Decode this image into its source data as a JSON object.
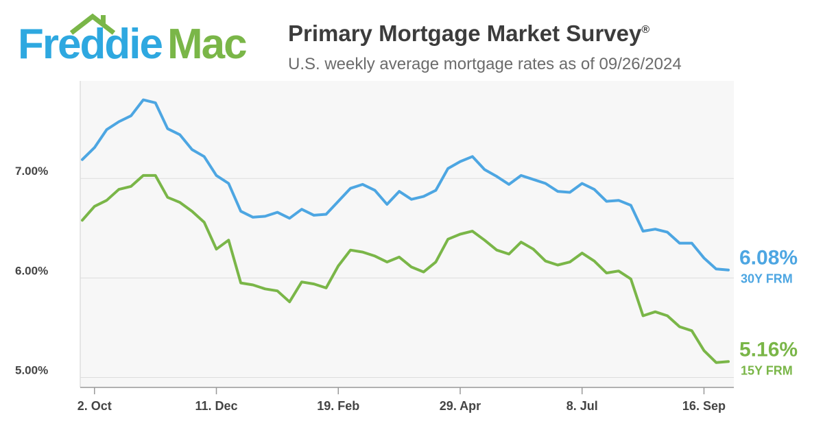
{
  "logo": {
    "part1": "Freddie",
    "part2": "Mac",
    "roof_icon": "house-roof-icon"
  },
  "header": {
    "title": "Primary Mortgage Market Survey",
    "title_mark": "®",
    "subtitle": "U.S. weekly average mortgage rates as of 09/26/2024"
  },
  "colors": {
    "thirty": "#4da6e2",
    "fifteen": "#7ab648",
    "plot_bg": "#f7f7f7",
    "grid": "#dddddd"
  },
  "chart_data": {
    "type": "line",
    "x_tick_labels": [
      "2. Oct",
      "11. Dec",
      "19. Feb",
      "29. Apr",
      "8. Jul",
      "16. Sep"
    ],
    "x_tick_weeks": [
      1,
      11,
      21,
      31,
      41,
      51
    ],
    "y_tick_labels": [
      "5.00%",
      "6.00%",
      "7.00%"
    ],
    "y_ticks": [
      5.0,
      6.0,
      7.0
    ],
    "ylim": [
      4.9,
      7.98
    ],
    "grid": true,
    "series": [
      {
        "name": "30Y FRM",
        "end_label": "6.08%",
        "values": [
          7.19,
          7.31,
          7.49,
          7.57,
          7.63,
          7.79,
          7.76,
          7.5,
          7.44,
          7.29,
          7.22,
          7.03,
          6.95,
          6.67,
          6.61,
          6.62,
          6.66,
          6.6,
          6.69,
          6.63,
          6.64,
          6.77,
          6.9,
          6.94,
          6.88,
          6.74,
          6.87,
          6.79,
          6.82,
          6.88,
          7.1,
          7.17,
          7.22,
          7.09,
          7.02,
          6.94,
          7.03,
          6.99,
          6.95,
          6.87,
          6.86,
          6.95,
          6.89,
          6.77,
          6.78,
          6.73,
          6.47,
          6.49,
          6.46,
          6.35,
          6.35,
          6.2,
          6.09,
          6.08
        ]
      },
      {
        "name": "15Y FRM",
        "end_label": "5.16%",
        "values": [
          6.58,
          6.72,
          6.78,
          6.89,
          6.92,
          7.03,
          7.03,
          6.81,
          6.76,
          6.67,
          6.56,
          6.29,
          6.38,
          5.95,
          5.93,
          5.89,
          5.87,
          5.76,
          5.96,
          5.94,
          5.9,
          6.12,
          6.28,
          6.26,
          6.22,
          6.16,
          6.21,
          6.11,
          6.06,
          6.16,
          6.39,
          6.44,
          6.47,
          6.38,
          6.28,
          6.24,
          6.36,
          6.29,
          6.17,
          6.13,
          6.16,
          6.25,
          6.17,
          6.05,
          6.07,
          5.99,
          5.62,
          5.66,
          5.62,
          5.51,
          5.47,
          5.27,
          5.15,
          5.16
        ]
      }
    ]
  }
}
